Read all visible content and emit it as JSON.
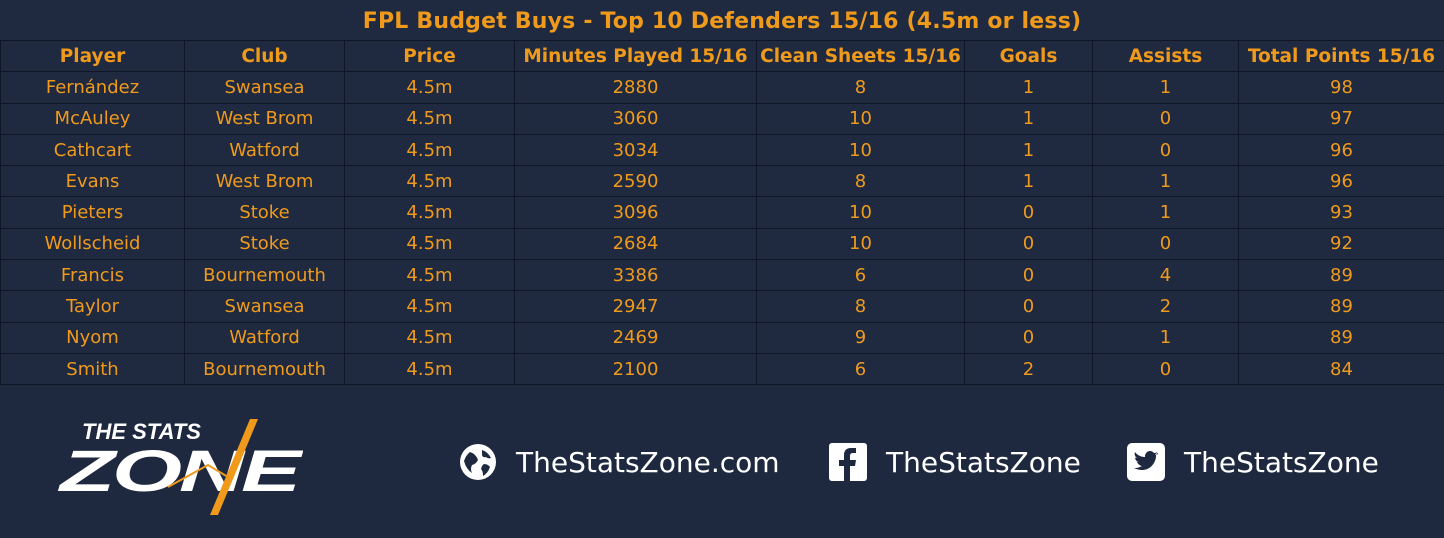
{
  "title": "FPL Budget Buys - Top 10 Defenders 15/16 (4.5m or less)",
  "table": {
    "headers": [
      "Player",
      "Club",
      "Price",
      "Minutes Played 15/16",
      "Clean Sheets 15/16",
      "Goals",
      "Assists",
      "Total Points 15/16"
    ],
    "rows": [
      [
        "Fernández",
        "Swansea",
        "4.5m",
        "2880",
        "8",
        "1",
        "1",
        "98"
      ],
      [
        "McAuley",
        "West Brom",
        "4.5m",
        "3060",
        "10",
        "1",
        "0",
        "97"
      ],
      [
        "Cathcart",
        "Watford",
        "4.5m",
        "3034",
        "10",
        "1",
        "0",
        "96"
      ],
      [
        "Evans",
        "West Brom",
        "4.5m",
        "2590",
        "8",
        "1",
        "1",
        "96"
      ],
      [
        "Pieters",
        "Stoke",
        "4.5m",
        "3096",
        "10",
        "0",
        "1",
        "93"
      ],
      [
        "Wollscheid",
        "Stoke",
        "4.5m",
        "2684",
        "10",
        "0",
        "0",
        "92"
      ],
      [
        "Francis",
        "Bournemouth",
        "4.5m",
        "3386",
        "6",
        "0",
        "4",
        "89"
      ],
      [
        "Taylor",
        "Swansea",
        "4.5m",
        "2947",
        "8",
        "0",
        "2",
        "89"
      ],
      [
        "Nyom",
        "Watford",
        "4.5m",
        "2469",
        "9",
        "0",
        "1",
        "89"
      ],
      [
        "Smith",
        "Bournemouth",
        "4.5m",
        "2100",
        "6",
        "2",
        "0",
        "84"
      ]
    ]
  },
  "footer": {
    "logo": {
      "line1": "THE STATS",
      "line2": "ZONE"
    },
    "website": {
      "icon": "globe-icon",
      "label": "TheStatsZone.com"
    },
    "facebook": {
      "icon": "facebook-icon",
      "label": "TheStatsZone"
    },
    "twitter": {
      "icon": "twitter-icon",
      "label": "TheStatsZone"
    }
  },
  "colors": {
    "background": "#1f2a40",
    "accent": "#f09a1b",
    "footer_text": "#ffffff"
  }
}
